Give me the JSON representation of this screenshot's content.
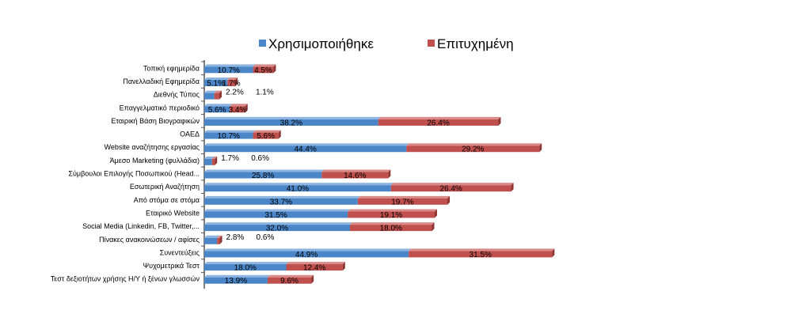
{
  "chart_data": {
    "type": "bar",
    "orientation": "horizontal",
    "stacked": true,
    "title": "",
    "xlabel": "",
    "ylabel": "",
    "legend": "top",
    "grid": false,
    "xlim": [
      0,
      80
    ],
    "categories": [
      "Τοπική εφημερίδα",
      "Πανελλαδική Εφημερίδα",
      "Διεθνής Τύπος",
      "Επαγγελματικό περιοδικό",
      "Εταιρική Βάση Βιογραφικών",
      "ΟΑΕΔ",
      "Website αναζήτησης εργασίας",
      "Άμεσο Marketing (φυλλάδια)",
      "Σύμβουλοι Επιλογής Ποσωπικού (Head...",
      "Εσωτερική Αναζήτηση",
      "Από στόμα σε στόμα",
      "Εταιρικό Website",
      "Social Media (Linkedin, FB, Twitter,...",
      "Πίνακες ανακοινώσεων / αφίσες",
      "Συνεντεύξεις",
      "Ψυχομετρικά Τεστ",
      "Τεστ δεξιοτήτων χρήσης Η/Υ ή ξένων γλωσσών"
    ],
    "series": [
      {
        "name": "Χρησιμοποιήθηκε",
        "color": "#4a86c8",
        "values": [
          10.7,
          5.1,
          2.2,
          5.6,
          38.2,
          10.7,
          44.4,
          1.7,
          25.8,
          41.0,
          33.7,
          31.5,
          32.0,
          2.8,
          44.9,
          18.0,
          13.9
        ],
        "labels": [
          "10.7%",
          "5.1%",
          "2.2%",
          "5.6%",
          "38.2%",
          "10.7%",
          "44.4%",
          "1.7%",
          "25.8%",
          "41.0%",
          "33.7%",
          "31.5%",
          "32.0%",
          "2.8%",
          "44.9%",
          "18.0%",
          "13.9%"
        ]
      },
      {
        "name": "Επιτυχημένη",
        "color": "#c0504d",
        "values": [
          4.5,
          1.7,
          1.1,
          3.4,
          26.4,
          5.6,
          29.2,
          0.6,
          14.6,
          26.4,
          19.7,
          19.1,
          18.0,
          0.6,
          31.5,
          12.4,
          9.6
        ],
        "labels": [
          "4.5%",
          "1.7%",
          "1.1%",
          "3.4%",
          "26.4%",
          "5.6%",
          "29.2%",
          "0.6%",
          "14.6%",
          "26.4%",
          "19.7%",
          "19.1%",
          "18.0%",
          "0.6%",
          "31.5%",
          "12.4%",
          "9.6%"
        ]
      }
    ]
  }
}
